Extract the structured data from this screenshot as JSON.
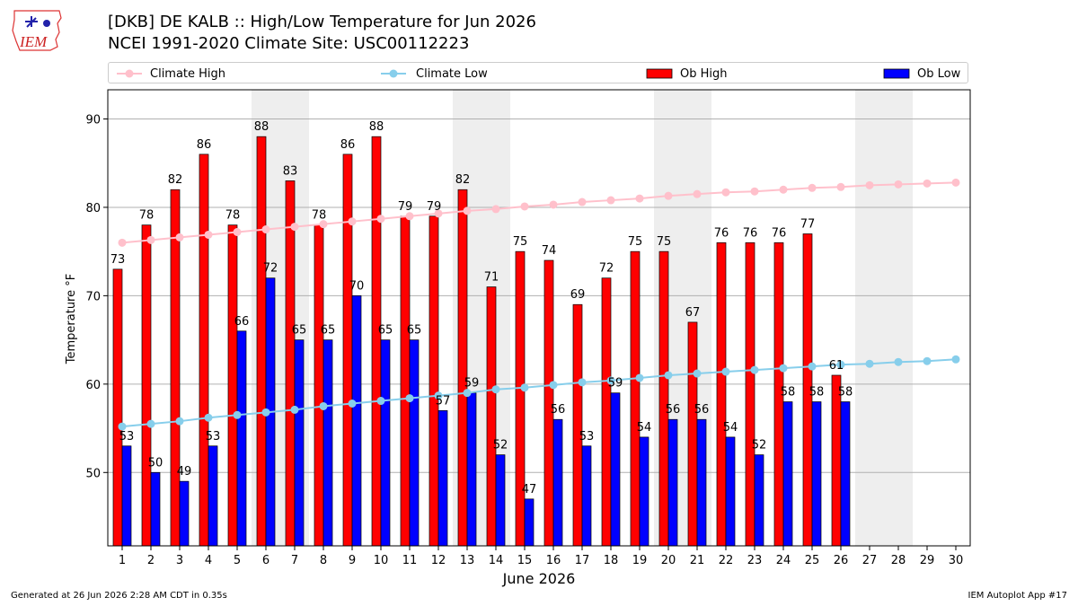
{
  "header": {
    "title_line1": "[DKB] DE KALB :: High/Low Temperature for Jun 2026",
    "title_line2": "NCEI 1991-2020 Climate Site: USC00112223",
    "logo_text": "IEM"
  },
  "footer": {
    "generated": "Generated at 26 Jun 2026 2:28 AM CDT in 0.35s",
    "app": "IEM Autoplot App #17"
  },
  "colors": {
    "climate_high": "#ffc0cb",
    "climate_low": "#87ceeb",
    "ob_high": "#ff0000",
    "ob_low": "#0000ff",
    "weekend_shade": "#eeeeee",
    "grid": "#b0b0b0"
  },
  "chart_data": {
    "type": "bar",
    "xlabel": "June 2026",
    "ylabel": "Temperature °F",
    "ylim": [
      41.7,
      93.3
    ],
    "yticks": [
      50,
      60,
      70,
      80,
      90
    ],
    "grid": "horizontal",
    "legend_placement": "top",
    "categories": [
      "1",
      "2",
      "3",
      "4",
      "5",
      "6",
      "7",
      "8",
      "9",
      "10",
      "11",
      "12",
      "13",
      "14",
      "15",
      "16",
      "17",
      "18",
      "19",
      "20",
      "21",
      "22",
      "23",
      "24",
      "25",
      "26",
      "27",
      "28",
      "29",
      "30"
    ],
    "shaded_days": [
      [
        6,
        7
      ],
      [
        13,
        14
      ],
      [
        20,
        21
      ],
      [
        27,
        28
      ]
    ],
    "series": [
      {
        "name": "Climate High",
        "kind": "line",
        "values": [
          76.0,
          76.3,
          76.6,
          76.9,
          77.2,
          77.5,
          77.8,
          78.1,
          78.4,
          78.7,
          79.0,
          79.3,
          79.6,
          79.8,
          80.1,
          80.3,
          80.6,
          80.8,
          81.0,
          81.3,
          81.5,
          81.7,
          81.8,
          82.0,
          82.2,
          82.3,
          82.5,
          82.6,
          82.7,
          82.8
        ]
      },
      {
        "name": "Climate Low",
        "kind": "line",
        "values": [
          55.2,
          55.5,
          55.8,
          56.2,
          56.5,
          56.8,
          57.1,
          57.5,
          57.8,
          58.1,
          58.4,
          58.7,
          59.0,
          59.4,
          59.6,
          59.9,
          60.2,
          60.4,
          60.7,
          61.0,
          61.2,
          61.4,
          61.6,
          61.8,
          62.0,
          62.2,
          62.3,
          62.5,
          62.6,
          62.8
        ]
      },
      {
        "name": "Ob High",
        "kind": "bar",
        "values": [
          73,
          78,
          82,
          86,
          78,
          88,
          83,
          78,
          86,
          88,
          79,
          79,
          82,
          71,
          75,
          74,
          69,
          72,
          75,
          75,
          67,
          76,
          76,
          76,
          77,
          61,
          null,
          null,
          null,
          null
        ]
      },
      {
        "name": "Ob Low",
        "kind": "bar",
        "values": [
          53,
          50,
          49,
          53,
          66,
          72,
          65,
          65,
          70,
          65,
          65,
          57,
          59,
          52,
          47,
          56,
          53,
          59,
          54,
          56,
          56,
          54,
          52,
          58,
          58,
          58,
          null,
          null,
          null,
          null
        ]
      }
    ]
  }
}
